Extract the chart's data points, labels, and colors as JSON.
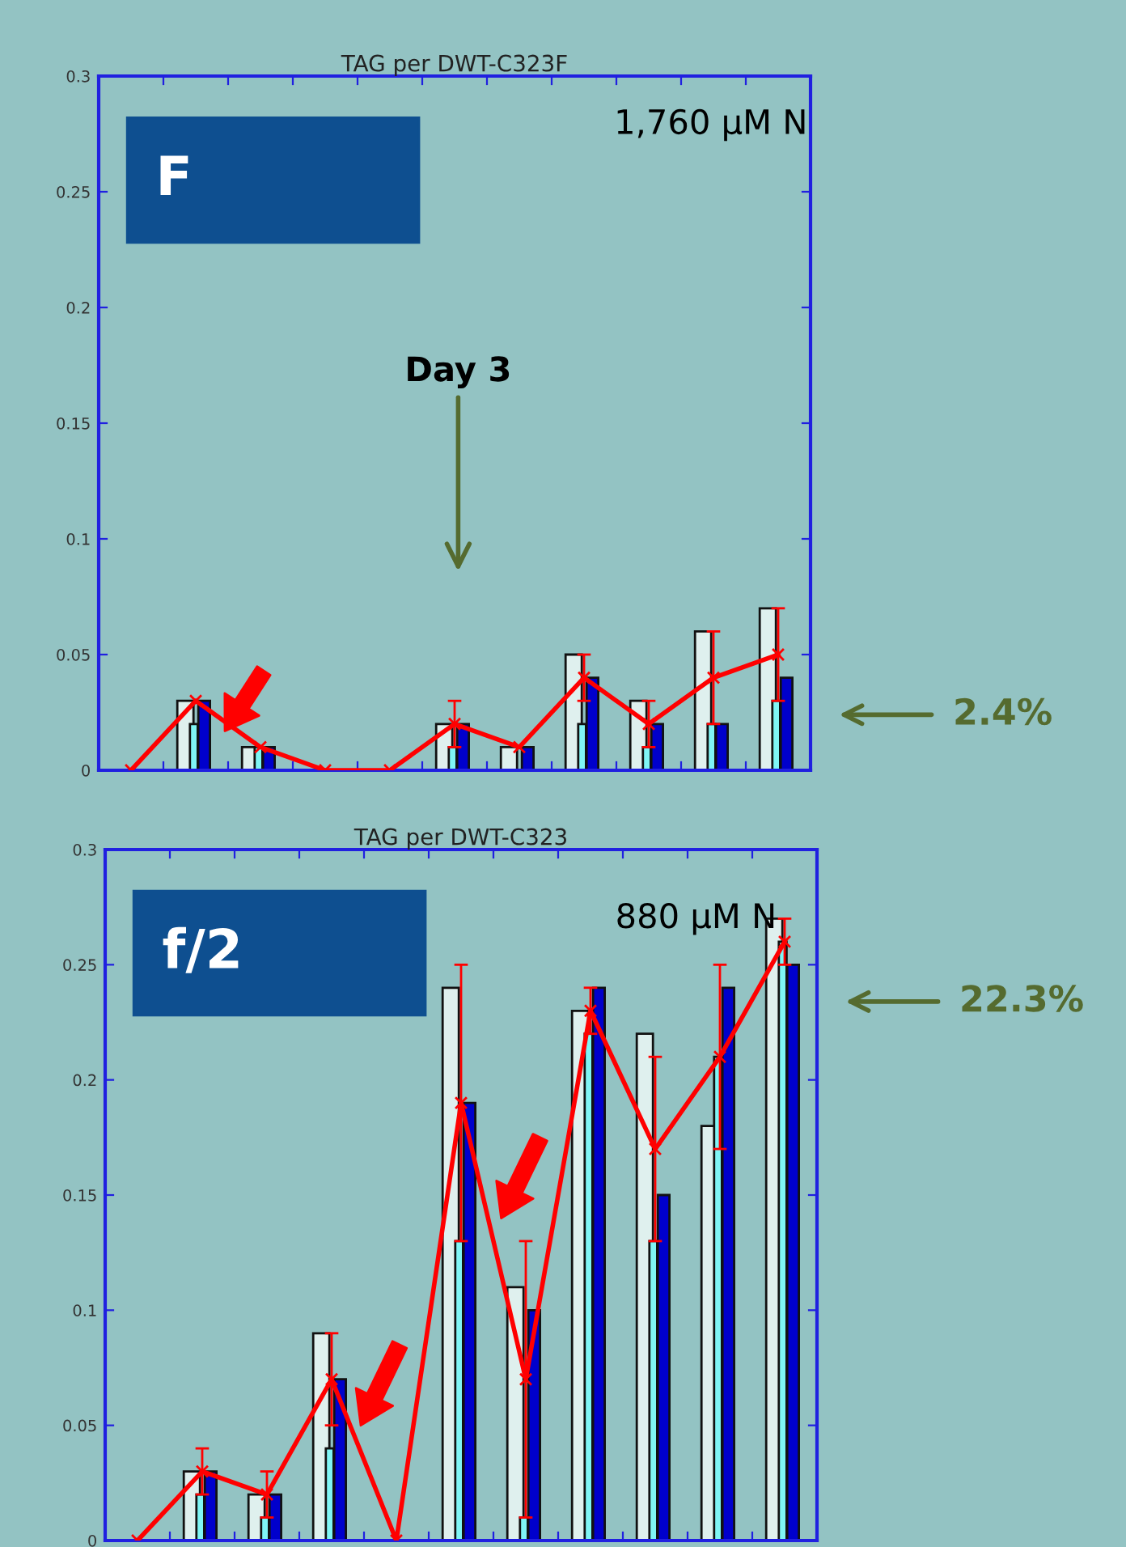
{
  "chart_data": [
    {
      "type": "bar",
      "title": "TAG per DWT-C323F",
      "categories": [
        null,
        null,
        null,
        null,
        null,
        null,
        null,
        null,
        null,
        null,
        null
      ],
      "series": [
        {
          "color": "#dff0ee",
          "values": [
            0,
            0.03,
            0.01,
            0,
            0,
            0.02,
            0.01,
            0.05,
            0.03,
            0.06,
            0.07
          ]
        },
        {
          "color": "#7ff5f5",
          "values": [
            0,
            0.02,
            0.01,
            0,
            0,
            0.01,
            0,
            0.02,
            0.01,
            0.02,
            0.03
          ]
        },
        {
          "color": "#0000cc",
          "values": [
            0,
            0.03,
            0.01,
            0,
            0,
            0.02,
            0.01,
            0.04,
            0.02,
            0.02,
            0.04
          ]
        },
        {
          "type": "line",
          "color": "#ff0000",
          "values": [
            0,
            0.03,
            0.01,
            0,
            0,
            0.02,
            0.01,
            0.04,
            0.02,
            0.04,
            0.05
          ],
          "errors": [
            null,
            null,
            null,
            null,
            null,
            0.01,
            null,
            0.01,
            0.01,
            0.02,
            0.02
          ]
        }
      ],
      "ylim": [
        0,
        0.3
      ],
      "yticks": [
        0,
        0.05,
        0.1,
        0.15,
        0.2,
        0.25,
        0.3
      ],
      "marker": "cross",
      "tick_labels": "y",
      "annotations": [
        "F",
        "1,760 µM N",
        "Day 3",
        "2.4%"
      ]
    },
    {
      "type": "bar",
      "title": "TAG per DWT-C323",
      "categories": [
        null,
        null,
        null,
        null,
        null,
        null,
        null,
        null,
        null,
        null,
        null
      ],
      "series": [
        {
          "color": "#dff0ee",
          "values": [
            0,
            0.03,
            0.02,
            0.09,
            0,
            0.24,
            0.11,
            0.23,
            0.22,
            0.18,
            0.27
          ]
        },
        {
          "color": "#7ff5f5",
          "values": [
            0,
            0.02,
            0.01,
            0.04,
            0,
            0.13,
            0.01,
            0.22,
            0.13,
            0.21,
            0.26
          ]
        },
        {
          "color": "#0000cc",
          "values": [
            0,
            0.03,
            0.02,
            0.07,
            0,
            0.19,
            0.1,
            0.24,
            0.15,
            0.24,
            0.25
          ]
        },
        {
          "type": "line",
          "color": "#ff0000",
          "values": [
            0,
            0.03,
            0.02,
            0.07,
            0,
            0.19,
            0.07,
            0.23,
            0.17,
            0.21,
            0.26
          ],
          "errors": [
            null,
            0.01,
            0.01,
            0.02,
            null,
            0.06,
            0.06,
            0.01,
            0.04,
            0.04,
            0.01
          ]
        }
      ],
      "ylim": [
        0,
        0.3
      ],
      "yticks": [
        0,
        0.05,
        0.1,
        0.15,
        0.2,
        0.25,
        0.3
      ],
      "marker": "cross",
      "tick_labels": "y",
      "annotations": [
        "f/2",
        "880 µM N",
        "22.3%"
      ]
    }
  ]
}
